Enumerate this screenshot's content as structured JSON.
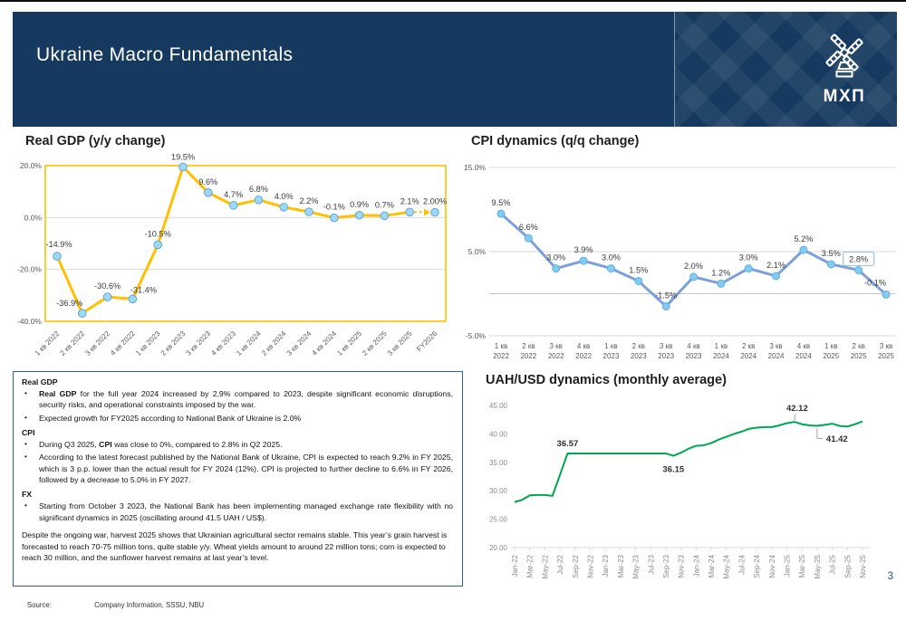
{
  "header": {
    "title": "Ukraine Macro Fundamentals",
    "logo_text": "МХП"
  },
  "chart_data": [
    {
      "id": "gdp",
      "type": "line",
      "title": "Real GDP (y/y change)",
      "categories": [
        "1 кв 2022",
        "2 кв 2022",
        "3 кв 2022",
        "4 кв 2022",
        "1 кв 2023",
        "2 кв 2023",
        "3 кв 2023",
        "4 кв 2023",
        "1 кв 2024",
        "2 кв 2024",
        "3 кв 2024",
        "4 кв 2024",
        "1 кв 2025",
        "2 кв 2025",
        "3 кв 2025",
        "FY2026"
      ],
      "values": [
        -14.9,
        -36.9,
        -30.6,
        -31.4,
        -10.5,
        19.5,
        9.6,
        4.7,
        6.8,
        4.0,
        2.2,
        -0.1,
        0.9,
        0.7,
        2.1,
        2.0
      ],
      "labels": [
        "-14.9%",
        "-36.9%",
        "-30.6%",
        "-31.4%",
        "-10.5%",
        "19.5%",
        "9.6%",
        "4.7%",
        "6.8%",
        "4.0%",
        "2.2%",
        "-0.1%",
        "0.9%",
        "0.7%",
        "2.1%",
        "2.00%"
      ],
      "label_offsets": {
        "0": [
          2,
          -10
        ],
        "1": [
          -14,
          -8
        ],
        "3": [
          12,
          -7
        ],
        "5": [
          0,
          -8
        ]
      },
      "ylim": [
        -40,
        20
      ],
      "yticks": [
        "20.0%",
        "0.0%",
        "-20.0%",
        "-40.0%"
      ],
      "ytick_values": [
        20,
        0,
        -20,
        -40
      ],
      "grid_values": [
        0,
        -20
      ],
      "grid": "horizontal",
      "legend": "none",
      "forecast_from": 14,
      "line_color": "#FFC000",
      "border_color": "#FFC000",
      "marker_fill": "#9ED8F5",
      "marker_stroke": "#5FA8D5"
    },
    {
      "id": "cpi",
      "type": "line",
      "title": "CPI dynamics (q/q change)",
      "categories": [
        [
          "1 кв",
          "2022"
        ],
        [
          "2 кв",
          "2022"
        ],
        [
          "3 кв",
          "2022"
        ],
        [
          "4 кв",
          "2022"
        ],
        [
          "1 кв",
          "2023"
        ],
        [
          "2 кв",
          "2023"
        ],
        [
          "3 кв",
          "2023"
        ],
        [
          "4 кв",
          "2023"
        ],
        [
          "1 кв",
          "2024"
        ],
        [
          "2 кв",
          "2024"
        ],
        [
          "3 кв",
          "2024"
        ],
        [
          "4 кв",
          "2024"
        ],
        [
          "1 кв",
          "2025"
        ],
        [
          "2 кв",
          "2025"
        ],
        [
          "3 кв",
          "2025"
        ]
      ],
      "values": [
        9.5,
        6.6,
        3.0,
        3.9,
        3.0,
        1.5,
        -1.5,
        2.0,
        1.2,
        3.0,
        2.1,
        5.2,
        3.5,
        2.8,
        -0.1
      ],
      "labels": [
        "9.5%",
        "6.6%",
        "3.0%",
        "3.9%",
        "3.0%",
        "1.5%",
        "-1.5%",
        "2.0%",
        "1.2%",
        "3.0%",
        "2.1%",
        "5.2%",
        "3.5%",
        "2.8%",
        "-0.1%"
      ],
      "label_offsets": {
        "14": [
          -12,
          -10
        ]
      },
      "highlight_index": 13,
      "highlight_box_color": "#9DC3E6",
      "ylim": [
        -5,
        15
      ],
      "yticks": [
        "15.0%",
        "5.0%",
        "-5.0%"
      ],
      "ytick_values": [
        15,
        5,
        -5
      ],
      "grid_values": [
        15,
        5,
        -5
      ],
      "zero_line": true,
      "grid": "horizontal",
      "legend": "none",
      "line_color": "#7D9FDB",
      "marker_fill": "#82CBF2",
      "marker_stroke": "#5FB0DE"
    },
    {
      "id": "uah",
      "type": "line",
      "title": "UAH/USD dynamics (monthly average)",
      "x": [
        "Jan-22",
        "Feb-22",
        "Mar-22",
        "Apr-22",
        "May-22",
        "Jun-22",
        "Jul-22",
        "Aug-22",
        "Sep-22",
        "Oct-22",
        "Nov-22",
        "Dec-22",
        "Jan-23",
        "Feb-23",
        "Mar-23",
        "Apr-23",
        "May-23",
        "Jun-23",
        "Jul-23",
        "Aug-23",
        "Sep-23",
        "Oct-23",
        "Nov-23",
        "Dec-23",
        "Jan-24",
        "Feb-24",
        "Mar-24",
        "Apr-24",
        "May-24",
        "Jun-24",
        "Jul-24",
        "Aug-24",
        "Sep-24",
        "Oct-24",
        "Nov-24",
        "Dec-24",
        "Jan-25",
        "Feb-25",
        "Mar-25",
        "Apr-25",
        "May-25",
        "Jun-25",
        "Jul-25",
        "Aug-25",
        "Sep-25",
        "Oct-25",
        "Nov-25"
      ],
      "values": [
        28.0,
        28.4,
        29.2,
        29.25,
        29.25,
        29.1,
        32.8,
        36.57,
        36.57,
        36.57,
        36.57,
        36.57,
        36.57,
        36.57,
        36.57,
        36.57,
        36.57,
        36.57,
        36.57,
        36.57,
        36.57,
        36.15,
        36.7,
        37.4,
        37.9,
        38.0,
        38.4,
        39.0,
        39.5,
        40.0,
        40.4,
        40.9,
        41.1,
        41.2,
        41.2,
        41.5,
        41.9,
        42.12,
        41.7,
        41.5,
        41.42,
        41.6,
        41.8,
        41.4,
        41.3,
        41.7,
        42.2
      ],
      "label_every": 2,
      "ylim": [
        20,
        45
      ],
      "yticks": [
        "45.00",
        "40.00",
        "35.00",
        "30.00",
        "25.00",
        "20.00"
      ],
      "ytick_values": [
        45,
        40,
        35,
        30,
        25,
        20
      ],
      "grid": "none",
      "legend": "none",
      "annotations": [
        {
          "text": "36.57",
          "index": 7,
          "pos": "above"
        },
        {
          "text": "36.15",
          "index": 21,
          "pos": "below"
        },
        {
          "text": "42.12",
          "index": 37,
          "pos": "above-leader"
        },
        {
          "text": "41.42",
          "index": 40,
          "pos": "right-leader"
        }
      ],
      "line_color": "#00A651"
    }
  ],
  "notes": {
    "sections": [
      {
        "heading": "Real GDP",
        "bullets": [
          [
            {
              "b": true,
              "t": "Real GDP"
            },
            {
              "b": false,
              "t": " for the full year 2024 increased by 2,9% compared to 2023, despite significant economic disruptions, security risks, and operational constraints imposed by the war."
            }
          ],
          [
            {
              "b": false,
              "t": "Expected growth for FY2025 according to National Bank of Ukraine is 2.0%"
            }
          ]
        ]
      },
      {
        "heading": "CPI",
        "bullets": [
          [
            {
              "b": false,
              "t": "During Q3 2025, "
            },
            {
              "b": true,
              "t": "CPI"
            },
            {
              "b": false,
              "t": " was close to 0%, compared to 2.8% in Q2 2025."
            }
          ],
          [
            {
              "b": false,
              "t": "According to the latest forecast published by the National Bank of Ukraine, CPI is expected to reach 9.2% in FY 2025, which is 3 p.p. lower than the actual result for FY 2024 (12%). CPI is projected to further decline to 6.6% in FY 2026, followed by a decrease to 5.0% in FY 2027."
            }
          ]
        ]
      },
      {
        "heading": "FX",
        "bullets": [
          [
            {
              "b": false,
              "t": "Starting from October 3 2023, the National Bank has been implementing managed exchange rate flexibility with no significant dynamics in 2025 (oscillating around 41.5 UAH / US$)."
            }
          ]
        ]
      }
    ],
    "footer": "Despite the ongoing war, harvest 2025 shows that Ukrainian agricultural sector remains stable. This year’s grain harvest is forecasted to reach 70-75 million tons, quite stable y/y. Wheat yields amount to around 22 million tons; corn is expected to reach 30 million, and the sunflower harvest remains at last year’s level."
  },
  "footer": {
    "source_label": "Source:",
    "source_value": "Company Information, SSSU, NBU",
    "page_number": "3"
  }
}
